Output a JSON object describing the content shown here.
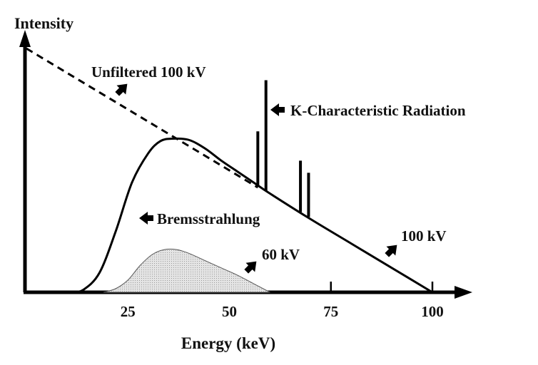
{
  "chart_data": {
    "type": "line",
    "title": "",
    "ylabel": "Intensity",
    "xlabel": "Energy (keV)",
    "xlim": [
      0,
      105
    ],
    "ylim": [
      0,
      100
    ],
    "xticks": [
      25,
      50,
      75,
      100
    ],
    "xtick_labels": [
      "25",
      "50",
      "75",
      "100"
    ],
    "series": [
      {
        "name": "Unfiltered 100 kV",
        "style": "dashed",
        "x": [
          0,
          57
        ],
        "y": [
          100,
          43
        ]
      },
      {
        "name": "100 kV",
        "style": "solid",
        "x": [
          11,
          14,
          18,
          22,
          26,
          30,
          33,
          36,
          40,
          44,
          48,
          52,
          56,
          60,
          70,
          80,
          90,
          100
        ],
        "y": [
          0,
          1,
          8,
          25,
          45,
          57,
          62,
          63,
          62.5,
          59,
          54,
          49.5,
          45,
          40.5,
          30,
          20,
          10,
          0
        ]
      },
      {
        "name": "60 kV",
        "style": "filled",
        "fill": "#d8d8d8",
        "x": [
          19,
          22,
          25,
          28,
          31,
          34,
          37,
          40,
          44,
          48,
          52,
          56,
          60
        ],
        "y": [
          0,
          1.5,
          5,
          11,
          15.5,
          17.5,
          17.5,
          16,
          13,
          10,
          7,
          3.5,
          0
        ]
      }
    ],
    "k_lines": [
      {
        "x": 57,
        "top": 66
      },
      {
        "x": 59,
        "top": 87
      },
      {
        "x": 67.5,
        "top": 54
      },
      {
        "x": 69.5,
        "top": 49
      }
    ],
    "annotations": [
      {
        "text": "Unfiltered 100 kV",
        "arrow": "down-left"
      },
      {
        "text": "K-Characteristic Radiation",
        "arrow": "left"
      },
      {
        "text": "Bremsstrahlung",
        "arrow": "left"
      },
      {
        "text": "60 kV",
        "arrow": "down-left"
      },
      {
        "text": "100 kV",
        "arrow": "down-left"
      }
    ]
  }
}
